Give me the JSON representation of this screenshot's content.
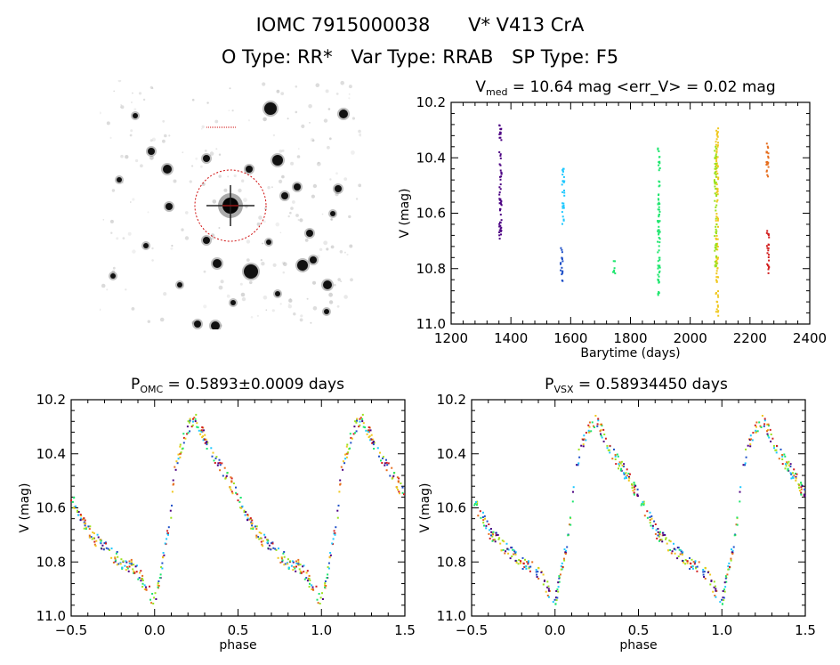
{
  "header": {
    "object_id": "IOMC 7915000038",
    "object_name": "V* V413 CrA",
    "o_type": "O Type: RR*",
    "var_type": "Var Type: RRAB",
    "sp_type": "SP Type: F5"
  },
  "stamp": {
    "marker_color": "#d01010"
  },
  "colors": [
    "#4b0082",
    "#1e50c8",
    "#1ec8ff",
    "#1ee66e",
    "#9be21e",
    "#f0c81e",
    "#e66e1e",
    "#d21e1e"
  ],
  "chart_data": [
    {
      "type": "scatter",
      "title_main": "V",
      "title_sub": "med",
      "title_rest": " = 10.64 mag <err_V> = 0.02 mag",
      "xlabel": "Barytime (days)",
      "ylabel": "V (mag)",
      "xlim": [
        1200,
        2400
      ],
      "ylim": [
        11.0,
        10.2
      ],
      "x_ticks": [
        "1200",
        "1400",
        "1600",
        "1800",
        "2000",
        "2200",
        "2400"
      ],
      "y_ticks": [
        "10.2",
        "10.4",
        "10.6",
        "10.8",
        "11.0"
      ],
      "series": [
        {
          "color_index": 0,
          "x": 1365,
          "ymin": 10.28,
          "ymax": 10.7
        },
        {
          "color_index": 2,
          "x": 1575,
          "ymin": 10.44,
          "ymax": 10.65
        },
        {
          "color_index": 1,
          "x": 1570,
          "ymin": 10.72,
          "ymax": 10.85
        },
        {
          "color_index": 3,
          "x": 1745,
          "ymin": 10.77,
          "ymax": 10.82
        },
        {
          "color_index": 3,
          "x": 1895,
          "ymin": 10.36,
          "ymax": 10.9
        },
        {
          "color_index": 5,
          "x": 2090,
          "ymin": 10.29,
          "ymax": 10.97
        },
        {
          "color_index": 4,
          "x": 2085,
          "ymin": 10.36,
          "ymax": 10.8
        },
        {
          "color_index": 6,
          "x": 2258,
          "ymin": 10.32,
          "ymax": 10.48
        },
        {
          "color_index": 7,
          "x": 2260,
          "ymin": 10.65,
          "ymax": 10.82
        }
      ]
    },
    {
      "type": "scatter",
      "title_main": "P",
      "title_sub": "OMC",
      "title_rest": " = 0.5893±0.0009 days",
      "xlabel": "phase",
      "ylabel": "V (mag)",
      "xlim": [
        -0.5,
        1.5
      ],
      "ylim": [
        11.0,
        10.2
      ],
      "x_ticks": [
        "−0.5",
        "0.0",
        "0.5",
        "1.0",
        "1.5"
      ],
      "y_ticks": [
        "10.2",
        "10.4",
        "10.6",
        "10.8",
        "11.0"
      ],
      "light_curve": [
        [
          0.0,
          10.95
        ],
        [
          0.05,
          10.8
        ],
        [
          0.1,
          10.62
        ],
        [
          0.12,
          10.45
        ],
        [
          0.2,
          10.3
        ],
        [
          0.25,
          10.28
        ],
        [
          0.35,
          10.4
        ],
        [
          0.45,
          10.5
        ],
        [
          0.55,
          10.62
        ],
        [
          0.62,
          10.7
        ],
        [
          0.72,
          10.76
        ],
        [
          0.8,
          10.8
        ],
        [
          0.88,
          10.82
        ],
        [
          0.94,
          10.88
        ],
        [
          1.0,
          10.95
        ]
      ]
    },
    {
      "type": "scatter",
      "title_main": "P",
      "title_sub": "VSX",
      "title_rest": " = 0.58934450 days",
      "xlabel": "phase",
      "ylabel": "V (mag)",
      "xlim": [
        -0.5,
        1.5
      ],
      "ylim": [
        11.0,
        10.2
      ],
      "x_ticks": [
        "−0.5",
        "0.0",
        "0.5",
        "1.0",
        "1.5"
      ],
      "y_ticks": [
        "10.2",
        "10.4",
        "10.6",
        "10.8",
        "11.0"
      ],
      "light_curve": [
        [
          0.0,
          10.95
        ],
        [
          0.05,
          10.8
        ],
        [
          0.1,
          10.62
        ],
        [
          0.12,
          10.45
        ],
        [
          0.2,
          10.3
        ],
        [
          0.25,
          10.28
        ],
        [
          0.35,
          10.4
        ],
        [
          0.45,
          10.5
        ],
        [
          0.55,
          10.62
        ],
        [
          0.62,
          10.7
        ],
        [
          0.72,
          10.76
        ],
        [
          0.8,
          10.8
        ],
        [
          0.88,
          10.82
        ],
        [
          0.94,
          10.88
        ],
        [
          1.0,
          10.95
        ]
      ]
    }
  ]
}
